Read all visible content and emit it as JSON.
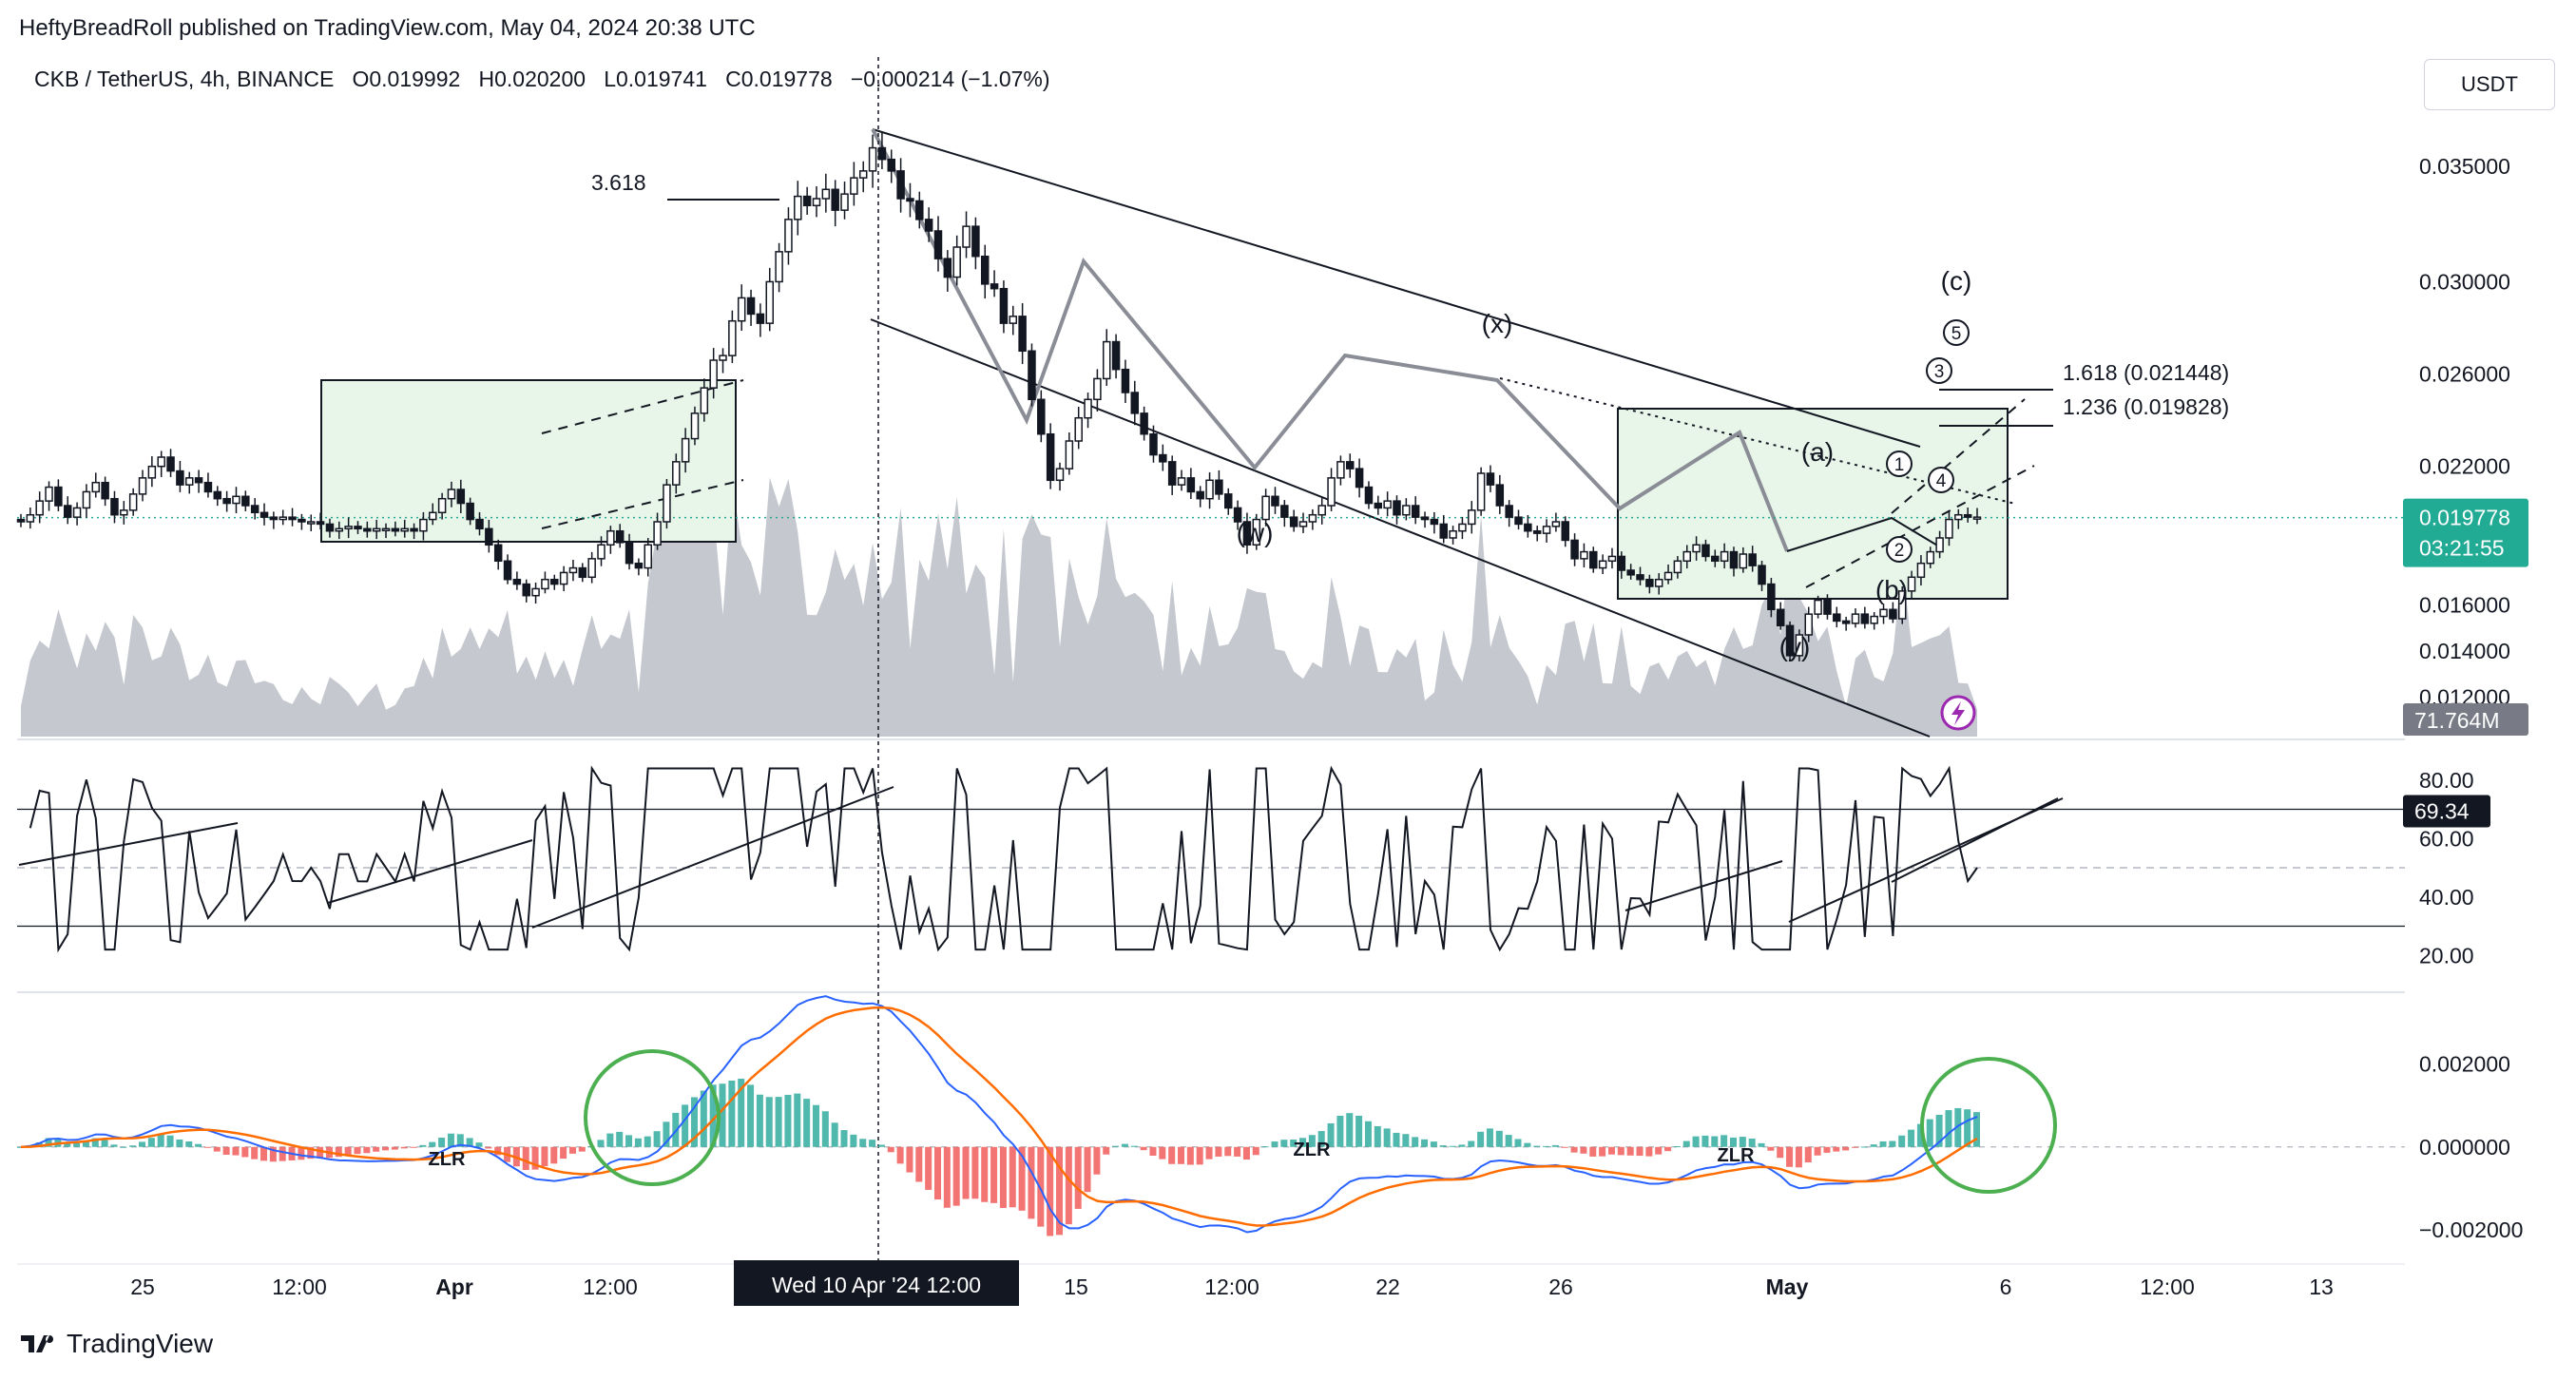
{
  "header": {
    "published": "HeftyBreadRoll published on TradingView.com, May 04, 2024 20:38 UTC",
    "symbol": "CKB / TetherUS, 4h, BINANCE",
    "open": "O0.019992",
    "high": "H0.020200",
    "low": "L0.019741",
    "close": "C0.019778",
    "change": "−0.000214 (−1.07%)",
    "currency_button": "USDT"
  },
  "footer": {
    "brand": "TradingView"
  },
  "colors": {
    "up": "#131722",
    "grid": "#e0e3eb",
    "last_price": "#22ab94",
    "volume": "#b2b5be",
    "macd": "#2962ff",
    "signal": "#ff6d00",
    "hist_pos": "#26a69a",
    "hist_neg": "#ef5350",
    "circle": "#4caf50",
    "box_fill": "#e8f5e9"
  },
  "chart_data": [
    {
      "type": "candlestick",
      "title": "CKB / TetherUS, 4h, BINANCE",
      "ylim": [
        0.0105,
        0.0385
      ],
      "y_ticks": [
        0.035,
        0.03,
        0.026,
        0.022,
        0.016,
        0.014,
        0.012
      ],
      "y_tick_labels": [
        "0.035000",
        "0.030000",
        "0.026000",
        "0.022000",
        "0.016000",
        "0.014000",
        "0.012000"
      ],
      "x_ticks": [
        "25",
        "12:00",
        "Apr",
        "12:00",
        "Wed 10 Apr '24   12:00",
        "15",
        "12:00",
        "22",
        "26",
        "May",
        "6",
        "12:00",
        "13"
      ],
      "last_price": {
        "label": "0.019778",
        "value": 0.019778,
        "countdown": "03:21:55"
      },
      "volume_label": "71.764M",
      "closes": [
        0.0196,
        0.0199,
        0.0205,
        0.0211,
        0.0203,
        0.0198,
        0.0202,
        0.0209,
        0.0213,
        0.0206,
        0.0199,
        0.0201,
        0.0208,
        0.0215,
        0.022,
        0.0224,
        0.0218,
        0.0212,
        0.0215,
        0.0213,
        0.0209,
        0.0206,
        0.0204,
        0.0207,
        0.0203,
        0.02,
        0.0198,
        0.0197,
        0.0198,
        0.0197,
        0.0196,
        0.0196,
        0.0195,
        0.0192,
        0.0193,
        0.0194,
        0.0193,
        0.0192,
        0.0193,
        0.0193,
        0.0192,
        0.0193,
        0.0192,
        0.0197,
        0.02,
        0.0206,
        0.021,
        0.0204,
        0.0197,
        0.0193,
        0.0186,
        0.0179,
        0.0171,
        0.0169,
        0.0164,
        0.0167,
        0.0171,
        0.0169,
        0.0174,
        0.0176,
        0.0172,
        0.018,
        0.0186,
        0.0192,
        0.0187,
        0.0178,
        0.0176,
        0.0186,
        0.0196,
        0.0212,
        0.0222,
        0.0232,
        0.0243,
        0.0254,
        0.0266,
        0.0268,
        0.0283,
        0.0293,
        0.0286,
        0.0282,
        0.03,
        0.0313,
        0.0327,
        0.0337,
        0.0333,
        0.0336,
        0.034,
        0.0331,
        0.0338,
        0.0345,
        0.0348,
        0.0358,
        0.0353,
        0.0348,
        0.0336,
        0.0335,
        0.0327,
        0.0322,
        0.031,
        0.0302,
        0.0315,
        0.0324,
        0.0311,
        0.0299,
        0.0297,
        0.0282,
        0.0285,
        0.027,
        0.0249,
        0.0234,
        0.0214,
        0.0219,
        0.0231,
        0.0241,
        0.0249,
        0.0258,
        0.0274,
        0.0262,
        0.0252,
        0.0243,
        0.0234,
        0.0225,
        0.0222,
        0.0212,
        0.0215,
        0.0209,
        0.0206,
        0.0214,
        0.0208,
        0.0202,
        0.0196,
        0.0186,
        0.0197,
        0.0207,
        0.0203,
        0.0198,
        0.0194,
        0.0196,
        0.0199,
        0.0203,
        0.0215,
        0.0222,
        0.0219,
        0.0211,
        0.0204,
        0.0202,
        0.0205,
        0.0199,
        0.0203,
        0.0198,
        0.0197,
        0.0195,
        0.0189,
        0.0192,
        0.0195,
        0.0201,
        0.0217,
        0.0212,
        0.0203,
        0.0198,
        0.0195,
        0.0192,
        0.0191,
        0.0194,
        0.0196,
        0.0188,
        0.018,
        0.0183,
        0.0176,
        0.0179,
        0.0181,
        0.0175,
        0.0173,
        0.0171,
        0.0168,
        0.0171,
        0.0174,
        0.0179,
        0.0183,
        0.0186,
        0.0181,
        0.0179,
        0.0183,
        0.0176,
        0.0182,
        0.0177,
        0.0169,
        0.0158,
        0.0151,
        0.0138,
        0.0147,
        0.0156,
        0.0162,
        0.0156,
        0.0153,
        0.0152,
        0.0156,
        0.0152,
        0.0155,
        0.0158,
        0.0154,
        0.0166,
        0.0172,
        0.0178,
        0.0183,
        0.0189,
        0.0197,
        0.0199,
        0.0198,
        0.0198
      ]
    },
    {
      "type": "line",
      "title": "RSI",
      "ylim": [
        10,
        90
      ],
      "y_ticks": [
        80,
        60,
        40,
        20
      ],
      "y_tick_labels": [
        "80.00",
        "60.00",
        "40.00",
        "20.00"
      ],
      "bands": [
        70,
        50,
        30
      ],
      "last_value": 69.34,
      "last_label": "69.34"
    },
    {
      "type": "line",
      "title": "MACD",
      "ylim": [
        -0.0026,
        0.0036
      ],
      "y_ticks": [
        0.002,
        0,
        -0.002
      ],
      "y_tick_labels": [
        "0.002000",
        "0.000000",
        "−0.002000"
      ],
      "labels": [
        "ZLR",
        "ZLR",
        "ZLR"
      ]
    }
  ],
  "annotations": {
    "fib_3618": "3.618",
    "fib_1618": "1.618 (0.021448)",
    "fib_1236": "1.236 (0.019828)",
    "wave_w": "(w)",
    "wave_x": "(x)",
    "wave_y": "(y)",
    "wave_a": "(a)",
    "wave_b": "(b)",
    "wave_c": "(c)",
    "w1": "1",
    "w2": "2",
    "w3": "3",
    "w4": "4",
    "w5": "5"
  }
}
